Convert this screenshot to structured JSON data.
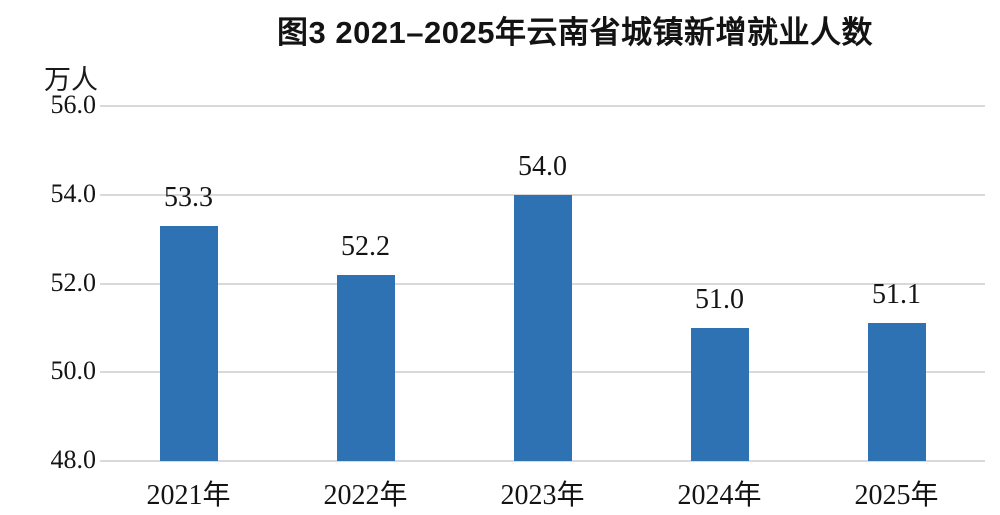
{
  "title": "图3 2021–2025年云南省城镇新增就业人数",
  "chart_data": {
    "type": "bar",
    "title": "图3 2021–2025年云南省城镇新增就业人数",
    "unit_label": "万人",
    "categories": [
      "2021年",
      "2022年",
      "2023年",
      "2024年",
      "2025年"
    ],
    "values": [
      53.3,
      52.2,
      54.0,
      51.0,
      51.1
    ],
    "value_labels": [
      "53.3",
      "52.2",
      "54.0",
      "51.0",
      "51.1"
    ],
    "ylim": [
      48.0,
      56.0
    ],
    "yticks": [
      48.0,
      50.0,
      52.0,
      54.0,
      56.0
    ],
    "ytick_labels": [
      "48.0",
      "50.0",
      "52.0",
      "54.0",
      "56.0"
    ],
    "xlabel": "",
    "ylabel": "万人",
    "grid": true,
    "legend": "none",
    "bar_color": "#2f72b4",
    "gridline_color": "#d9d9d9",
    "axisline_color": "#d9d9d9",
    "text_color": "#141414"
  }
}
